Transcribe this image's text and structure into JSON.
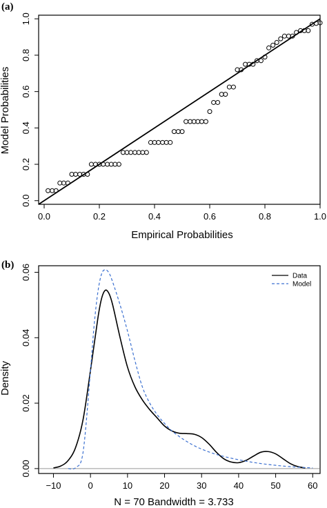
{
  "chart_data": [
    {
      "type": "scatter",
      "panel_label": "(a)",
      "xlabel": "Empirical Probabilities",
      "ylabel": "Model Probabilities",
      "xlim": [
        -0.02,
        1.0
      ],
      "ylim": [
        -0.02,
        1.02
      ],
      "x_ticks": [
        0.0,
        0.2,
        0.4,
        0.6,
        0.8,
        1.0
      ],
      "x_tick_labels": [
        "0.0",
        "0.2",
        "0.4",
        "0.6",
        "0.8",
        "1.0"
      ],
      "y_ticks": [
        0.0,
        0.2,
        0.4,
        0.6,
        0.8,
        1.0
      ],
      "y_tick_labels": [
        "0.0",
        "0.2",
        "0.4",
        "0.6",
        "0.8",
        "1.0"
      ],
      "reference_line": {
        "x": [
          -0.02,
          1.0
        ],
        "y": [
          -0.02,
          1.0
        ]
      },
      "series": [
        {
          "marker": "open-circle",
          "points": [
            [
              0.014,
              0.055
            ],
            [
              0.029,
              0.055
            ],
            [
              0.043,
              0.055
            ],
            [
              0.057,
              0.097
            ],
            [
              0.071,
              0.097
            ],
            [
              0.086,
              0.097
            ],
            [
              0.1,
              0.145
            ],
            [
              0.114,
              0.145
            ],
            [
              0.129,
              0.145
            ],
            [
              0.143,
              0.145
            ],
            [
              0.157,
              0.145
            ],
            [
              0.171,
              0.2
            ],
            [
              0.186,
              0.2
            ],
            [
              0.2,
              0.2
            ],
            [
              0.214,
              0.2
            ],
            [
              0.229,
              0.2
            ],
            [
              0.243,
              0.2
            ],
            [
              0.257,
              0.2
            ],
            [
              0.271,
              0.2
            ],
            [
              0.286,
              0.265
            ],
            [
              0.3,
              0.265
            ],
            [
              0.314,
              0.265
            ],
            [
              0.329,
              0.265
            ],
            [
              0.343,
              0.265
            ],
            [
              0.357,
              0.265
            ],
            [
              0.371,
              0.265
            ],
            [
              0.386,
              0.32
            ],
            [
              0.4,
              0.32
            ],
            [
              0.414,
              0.32
            ],
            [
              0.429,
              0.32
            ],
            [
              0.443,
              0.32
            ],
            [
              0.457,
              0.32
            ],
            [
              0.471,
              0.38
            ],
            [
              0.486,
              0.38
            ],
            [
              0.5,
              0.38
            ],
            [
              0.514,
              0.435
            ],
            [
              0.529,
              0.435
            ],
            [
              0.543,
              0.435
            ],
            [
              0.557,
              0.435
            ],
            [
              0.571,
              0.435
            ],
            [
              0.586,
              0.435
            ],
            [
              0.6,
              0.49
            ],
            [
              0.614,
              0.54
            ],
            [
              0.629,
              0.54
            ],
            [
              0.643,
              0.585
            ],
            [
              0.657,
              0.585
            ],
            [
              0.671,
              0.625
            ],
            [
              0.686,
              0.625
            ],
            [
              0.7,
              0.72
            ],
            [
              0.714,
              0.72
            ],
            [
              0.729,
              0.75
            ],
            [
              0.743,
              0.75
            ],
            [
              0.757,
              0.75
            ],
            [
              0.771,
              0.77
            ],
            [
              0.786,
              0.77
            ],
            [
              0.8,
              0.79
            ],
            [
              0.814,
              0.84
            ],
            [
              0.829,
              0.855
            ],
            [
              0.843,
              0.87
            ],
            [
              0.857,
              0.89
            ],
            [
              0.871,
              0.905
            ],
            [
              0.886,
              0.905
            ],
            [
              0.9,
              0.905
            ],
            [
              0.914,
              0.925
            ],
            [
              0.929,
              0.935
            ],
            [
              0.943,
              0.935
            ],
            [
              0.957,
              0.935
            ],
            [
              0.971,
              0.97
            ],
            [
              0.986,
              0.975
            ],
            [
              1.0,
              0.978
            ]
          ]
        }
      ]
    },
    {
      "type": "line",
      "panel_label": "(b)",
      "xlabel": "N = 70   Bandwidth = 3.733",
      "ylabel": "Density",
      "xlim": [
        -14,
        62
      ],
      "ylim": [
        -0.0015,
        0.062
      ],
      "x_ticks": [
        -10,
        0,
        10,
        20,
        30,
        40,
        50,
        60
      ],
      "x_tick_labels": [
        "−10",
        "0",
        "10",
        "20",
        "30",
        "40",
        "50",
        "60"
      ],
      "y_ticks": [
        0.0,
        0.02,
        0.04,
        0.06
      ],
      "y_tick_labels": [
        "0.00",
        "0.02",
        "0.04",
        "0.06"
      ],
      "baseline": 0,
      "legend": {
        "position": "top-right"
      },
      "series": [
        {
          "name": "Data",
          "color": "#000000",
          "dash": "solid",
          "x": [
            -10,
            -8,
            -6,
            -4,
            -2,
            0,
            2,
            3,
            4,
            5,
            6,
            8,
            10,
            12,
            14,
            16,
            18,
            20,
            22,
            24,
            26,
            28,
            30,
            32,
            34,
            36,
            38,
            40,
            42,
            44,
            46,
            48,
            50,
            52,
            54,
            56,
            58
          ],
          "y": [
            0.0002,
            0.0008,
            0.0025,
            0.0065,
            0.015,
            0.03,
            0.046,
            0.052,
            0.0545,
            0.0535,
            0.05,
            0.04,
            0.031,
            0.025,
            0.021,
            0.018,
            0.0155,
            0.013,
            0.0115,
            0.0108,
            0.0107,
            0.0105,
            0.0095,
            0.0075,
            0.005,
            0.003,
            0.002,
            0.0018,
            0.0025,
            0.0038,
            0.005,
            0.0052,
            0.0045,
            0.003,
            0.0015,
            0.0006,
            0.0002
          ]
        },
        {
          "name": "Model",
          "color": "#3a6fd0",
          "dash": "dashed",
          "x": [
            -6,
            -4,
            -2,
            0,
            1,
            2,
            3,
            4,
            5,
            6,
            8,
            10,
            12,
            14,
            16,
            18,
            20,
            22,
            25,
            28,
            31,
            35,
            40,
            45,
            50,
            55,
            60
          ],
          "y": [
            0.0,
            0.0003,
            0.005,
            0.03,
            0.044,
            0.054,
            0.0595,
            0.0608,
            0.0598,
            0.057,
            0.05,
            0.042,
            0.033,
            0.025,
            0.02,
            0.0165,
            0.0138,
            0.0115,
            0.009,
            0.007,
            0.0055,
            0.004,
            0.0027,
            0.0017,
            0.001,
            0.0005,
            0.0002
          ]
        }
      ]
    }
  ]
}
